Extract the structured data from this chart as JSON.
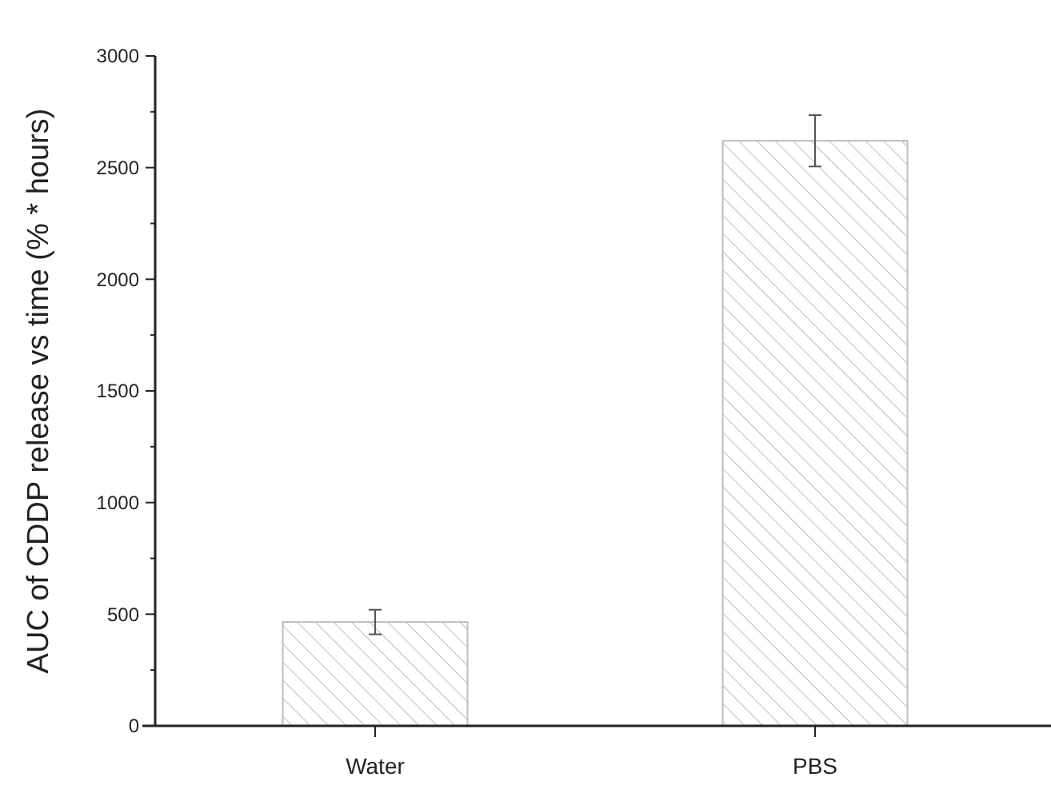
{
  "chart_data": {
    "type": "bar",
    "ylabel": "AUC of CDDP release vs time (% * hours)",
    "categories": [
      "Water",
      "PBS"
    ],
    "values": [
      465,
      2620
    ],
    "errors": [
      55,
      115
    ],
    "color": "#bdbdbd",
    "ylim": [
      0,
      3000
    ],
    "yticks": [
      0,
      {
        "value": 250,
        "label": null
      },
      500,
      {
        "value": 750,
        "label": null
      },
      1000,
      {
        "value": 1250,
        "label": null
      },
      1500,
      {
        "value": 1750,
        "label": null
      },
      2000,
      {
        "value": 2250,
        "label": null
      },
      2500,
      {
        "value": 2750,
        "label": null
      },
      3000
    ],
    "grid": false
  }
}
